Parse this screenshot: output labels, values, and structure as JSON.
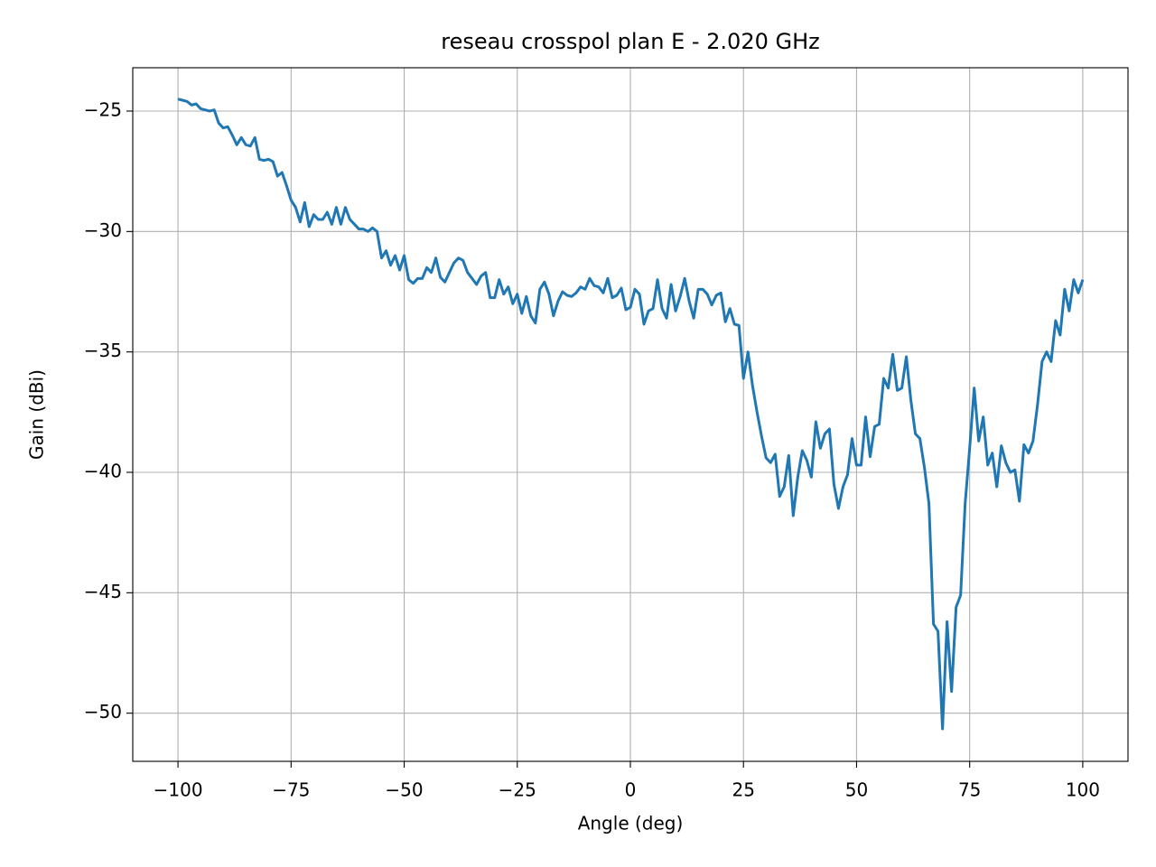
{
  "chart_data": {
    "type": "line",
    "title": "reseau crosspol plan E - 2.020 GHz",
    "x_label": "Angle (deg)",
    "y_label": "Gain (dBi)",
    "color": "#1f77b4",
    "grid": true,
    "xlim": [
      -110,
      110
    ],
    "ylim": [
      -52,
      -23.2
    ],
    "xticks": [
      {
        "value": -100,
        "label": "−100"
      },
      {
        "value": -75,
        "label": "−75"
      },
      {
        "value": -50,
        "label": "−50"
      },
      {
        "value": -25,
        "label": "−25"
      },
      0,
      25,
      50,
      75,
      100
    ],
    "yticks": [
      {
        "value": -50,
        "label": "−50"
      },
      {
        "value": -45,
        "label": "−45"
      },
      {
        "value": -40,
        "label": "−40"
      },
      {
        "value": -35,
        "label": "−35"
      },
      {
        "value": -30,
        "label": "−30"
      },
      {
        "value": -25,
        "label": "−25"
      }
    ],
    "x": [
      -100,
      -99,
      -98,
      -97,
      -96,
      -95,
      -94,
      -93,
      -92,
      -91,
      -90,
      -89,
      -88,
      -87,
      -86,
      -85,
      -84,
      -83,
      -82,
      -81,
      -80,
      -79,
      -78,
      -77,
      -76,
      -75,
      -74,
      -73,
      -72,
      -71,
      -70,
      -69,
      -68,
      -67,
      -66,
      -65,
      -64,
      -63,
      -62,
      -61,
      -60,
      -59,
      -58,
      -57,
      -56,
      -55,
      -54,
      -53,
      -52,
      -51,
      -50,
      -49,
      -48,
      -47,
      -46,
      -45,
      -44,
      -43,
      -42,
      -41,
      -40,
      -39,
      -38,
      -37,
      -36,
      -35,
      -34,
      -33,
      -32,
      -31,
      -30,
      -29,
      -28,
      -27,
      -26,
      -25,
      -24,
      -23,
      -22,
      -21,
      -20,
      -19,
      -18,
      -17,
      -16,
      -15,
      -14,
      -13,
      -12,
      -11,
      -10,
      -9,
      -8,
      -7,
      -6,
      -5,
      -4,
      -3,
      -2,
      -1,
      0,
      1,
      2,
      3,
      4,
      5,
      6,
      7,
      8,
      9,
      10,
      11,
      12,
      13,
      14,
      15,
      16,
      17,
      18,
      19,
      20,
      21,
      22,
      23,
      24,
      25,
      26,
      27,
      28,
      29,
      30,
      31,
      32,
      33,
      34,
      35,
      36,
      37,
      38,
      39,
      40,
      41,
      42,
      43,
      44,
      45,
      46,
      47,
      48,
      49,
      50,
      51,
      52,
      53,
      54,
      55,
      56,
      57,
      58,
      59,
      60,
      61,
      62,
      63,
      64,
      65,
      66,
      67,
      68,
      69,
      70,
      71,
      72,
      73,
      74,
      75,
      76,
      77,
      78,
      79,
      80,
      81,
      82,
      83,
      84,
      85,
      86,
      87,
      88,
      89,
      90,
      91,
      92,
      93,
      94,
      95,
      96,
      97,
      98,
      99,
      100
    ],
    "values": [
      -24.5,
      -24.55,
      -24.6,
      -24.75,
      -24.7,
      -24.9,
      -24.95,
      -25.0,
      -24.95,
      -25.5,
      -25.7,
      -25.65,
      -26.0,
      -26.4,
      -26.1,
      -26.4,
      -26.45,
      -26.1,
      -27.0,
      -27.05,
      -27.0,
      -27.1,
      -27.7,
      -27.55,
      -28.1,
      -28.7,
      -29.0,
      -29.6,
      -28.8,
      -29.8,
      -29.3,
      -29.5,
      -29.5,
      -29.2,
      -29.7,
      -29.0,
      -29.7,
      -29.0,
      -29.5,
      -29.7,
      -29.9,
      -29.9,
      -30.0,
      -29.85,
      -30.0,
      -31.1,
      -30.8,
      -31.4,
      -31.0,
      -31.6,
      -31.0,
      -32.0,
      -32.15,
      -31.95,
      -31.95,
      -31.5,
      -31.7,
      -31.1,
      -31.9,
      -32.1,
      -31.7,
      -31.3,
      -31.1,
      -31.2,
      -31.7,
      -31.95,
      -32.2,
      -31.85,
      -31.7,
      -32.75,
      -32.75,
      -32.0,
      -32.6,
      -32.3,
      -33.0,
      -32.6,
      -33.4,
      -32.7,
      -33.5,
      -33.8,
      -32.4,
      -32.1,
      -32.6,
      -33.5,
      -32.9,
      -32.5,
      -32.65,
      -32.7,
      -32.55,
      -32.3,
      -32.4,
      -31.95,
      -32.25,
      -32.3,
      -32.55,
      -31.95,
      -32.75,
      -32.65,
      -32.35,
      -33.25,
      -33.15,
      -32.4,
      -32.6,
      -33.85,
      -33.3,
      -33.2,
      -32.0,
      -33.2,
      -33.6,
      -32.2,
      -33.3,
      -32.7,
      -31.95,
      -32.9,
      -33.6,
      -32.4,
      -32.4,
      -32.6,
      -33.05,
      -32.65,
      -32.55,
      -33.75,
      -33.2,
      -33.85,
      -33.9,
      -36.1,
      -35.0,
      -36.4,
      -37.5,
      -38.5,
      -39.4,
      -39.6,
      -39.25,
      -41.0,
      -40.6,
      -39.3,
      -41.8,
      -40.2,
      -39.1,
      -39.5,
      -40.2,
      -37.9,
      -39.0,
      -38.4,
      -38.2,
      -40.5,
      -41.5,
      -40.6,
      -40.1,
      -38.6,
      -39.7,
      -39.7,
      -37.7,
      -39.35,
      -38.1,
      -38.0,
      -36.1,
      -36.5,
      -35.1,
      -36.6,
      -36.5,
      -35.2,
      -37.0,
      -38.4,
      -38.6,
      -39.8,
      -41.3,
      -46.3,
      -46.6,
      -50.65,
      -46.2,
      -49.1,
      -45.6,
      -45.1,
      -41.3,
      -39.0,
      -36.5,
      -38.7,
      -37.7,
      -39.7,
      -39.2,
      -40.6,
      -38.9,
      -39.6,
      -40.0,
      -39.9,
      -41.2,
      -38.85,
      -39.2,
      -38.7,
      -37.2,
      -35.4,
      -35.0,
      -35.4,
      -33.7,
      -34.3,
      -32.4,
      -33.3,
      -32.0,
      -32.55,
      -32.0
    ]
  }
}
